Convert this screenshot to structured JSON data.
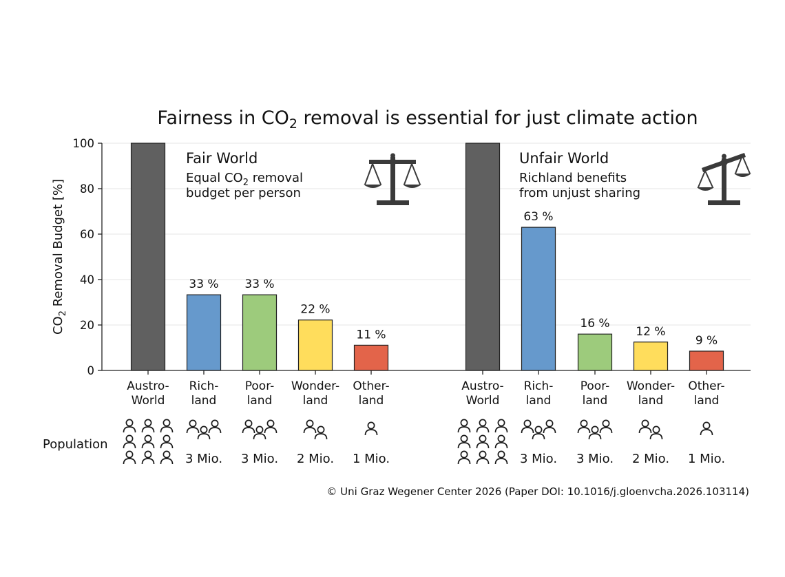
{
  "title_parts": [
    "Fairness in CO",
    "2",
    " removal is essential for just climate action"
  ],
  "population_label": "Population",
  "copyright": "© Uni Graz Wegener Center 2026 (Paper DOI: 10.1016/j.gloenvcha.2026.103114)",
  "icons": {
    "balanced": "balanced-scale-icon",
    "unbalanced": "tilted-scale-icon",
    "person": "person-icon"
  },
  "chart_data": {
    "type": "bar",
    "ylabel_parts": [
      "CO",
      "2",
      " Removal Budget [%]"
    ],
    "ylim": [
      0,
      100
    ],
    "yticks": [
      0,
      20,
      40,
      60,
      80,
      100
    ],
    "grid": true,
    "categories": [
      [
        "Austro-",
        "World"
      ],
      [
        "Rich-",
        "land"
      ],
      [
        "Poor-",
        "land"
      ],
      [
        "Wonder-",
        "land"
      ],
      [
        "Other-",
        "land"
      ]
    ],
    "colors": [
      "#606060",
      "#6699cc",
      "#9dcb7c",
      "#ffdd5c",
      "#e3644a"
    ],
    "panels": [
      {
        "title": "Fair World",
        "subtitle_parts": [
          "Equal CO",
          "2",
          " removal"
        ],
        "subtitle_line2": "budget per person",
        "icon": "balanced-scale-icon",
        "values": [
          100,
          33.3,
          33.3,
          22.2,
          11.1
        ],
        "labels": [
          "",
          "33 %",
          "33 %",
          "22 %",
          "11 %"
        ],
        "population": [
          "",
          "3 Mio.",
          "3 Mio.",
          "2 Mio.",
          "1 Mio."
        ],
        "people": [
          9,
          3,
          3,
          2,
          1
        ]
      },
      {
        "title": "Unfair World",
        "subtitle_line1": "Richland benefits",
        "subtitle_line2": "from unjust sharing",
        "icon": "tilted-scale-icon",
        "values": [
          100,
          63,
          16,
          12.5,
          8.5
        ],
        "labels": [
          "",
          "63 %",
          "16 %",
          "12 %",
          "9 %"
        ],
        "population": [
          "",
          "3 Mio.",
          "3 Mio.",
          "2 Mio.",
          "1 Mio."
        ],
        "people": [
          9,
          3,
          3,
          2,
          1
        ]
      }
    ]
  }
}
